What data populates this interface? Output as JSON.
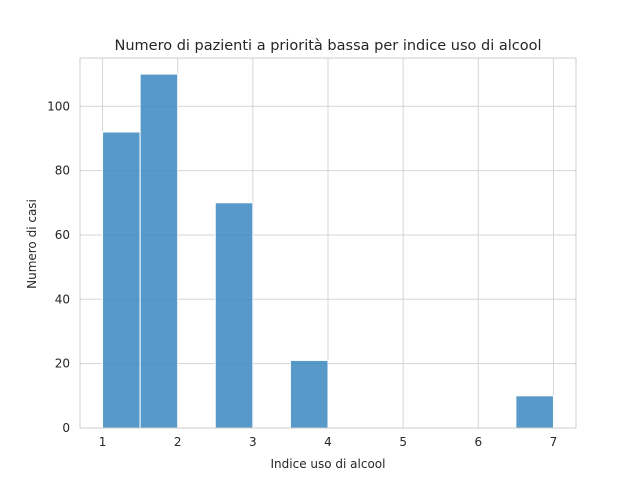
{
  "chart_data": {
    "type": "bar",
    "title": "Numero di pazienti a priorità bassa per indice uso di alcool",
    "xlabel": "Indice uso di alcool",
    "ylabel": "Numero di casi",
    "bins": [
      {
        "start": 1.0,
        "end": 1.5,
        "count": 92
      },
      {
        "start": 1.5,
        "end": 2.0,
        "count": 110
      },
      {
        "start": 2.0,
        "end": 2.5,
        "count": 0
      },
      {
        "start": 2.5,
        "end": 3.0,
        "count": 70
      },
      {
        "start": 3.0,
        "end": 3.5,
        "count": 0
      },
      {
        "start": 3.5,
        "end": 4.0,
        "count": 21
      },
      {
        "start": 4.0,
        "end": 4.5,
        "count": 0
      },
      {
        "start": 4.5,
        "end": 5.0,
        "count": 0
      },
      {
        "start": 5.0,
        "end": 5.5,
        "count": 0
      },
      {
        "start": 5.5,
        "end": 6.0,
        "count": 0
      },
      {
        "start": 6.0,
        "end": 6.5,
        "count": 0
      },
      {
        "start": 6.5,
        "end": 7.0,
        "count": 10
      }
    ],
    "xticks": [
      1,
      2,
      3,
      4,
      5,
      6,
      7
    ],
    "yticks": [
      0,
      20,
      40,
      60,
      80,
      100
    ],
    "xlim": [
      0.7,
      7.3
    ],
    "ylim": [
      0,
      115
    ],
    "grid": true,
    "bar_color": "#3a87c0"
  }
}
